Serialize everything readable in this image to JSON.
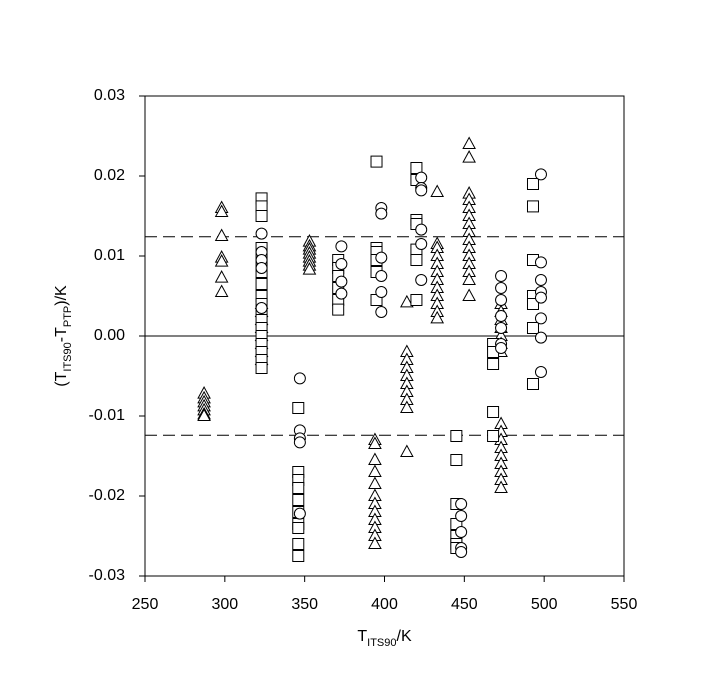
{
  "chart_data": {
    "type": "scatter",
    "xlabel": [
      {
        "text": "T"
      },
      {
        "text": "ITS90",
        "sub": true
      },
      {
        "text": "/K"
      }
    ],
    "ylabel": [
      {
        "text": "(T"
      },
      {
        "text": "ITS90",
        "sub": true
      },
      {
        "text": "-T"
      },
      {
        "text": "PTP",
        "sub": true
      },
      {
        "text": ")/K"
      }
    ],
    "xlim": [
      250,
      550
    ],
    "xticks": [
      250,
      300,
      350,
      400,
      450,
      500,
      550
    ],
    "ylim": [
      -0.03,
      0.03
    ],
    "yticks": [
      -0.03,
      -0.02,
      -0.01,
      {
        "value": 0,
        "label": "0.00"
      },
      0.01,
      0.02,
      0.03
    ],
    "reference_lines": [
      {
        "value": 0.0124,
        "style": "dashed"
      },
      {
        "value": 0,
        "style": "solid"
      },
      {
        "value": -0.0124,
        "style": "dashed"
      }
    ],
    "series": [
      {
        "marker": "triangle",
        "color": "#000000",
        "x": [
          287,
          287,
          287,
          287,
          287,
          287,
          287,
          298,
          298,
          298,
          298,
          298,
          298,
          298,
          323,
          323,
          323,
          323,
          323,
          323,
          323,
          323,
          353,
          353,
          353,
          353,
          353,
          353,
          353,
          353,
          394,
          394,
          394,
          394,
          394,
          394,
          394,
          394,
          394,
          394,
          394,
          394,
          414,
          414,
          414,
          414,
          414,
          414,
          414,
          414,
          414,
          414,
          433,
          433,
          433,
          433,
          433,
          433,
          433,
          433,
          433,
          433,
          433,
          433,
          453,
          453,
          453,
          453,
          453,
          453,
          453,
          453,
          453,
          453,
          453,
          453,
          453,
          453,
          453,
          473,
          473,
          473,
          473,
          473,
          473,
          473,
          473,
          473,
          473,
          473,
          473,
          473,
          473,
          473,
          473
        ],
        "values": [
          -0.0072,
          -0.0078,
          -0.0083,
          -0.0088,
          -0.0093,
          -0.0098,
          -0.01,
          0.016,
          0.0155,
          0.0125,
          0.0098,
          0.0093,
          0.0073,
          0.0055,
          0.004,
          0.003,
          0.002,
          0.001,
          0,
          -0.001,
          -0.002,
          -0.003,
          0.0118,
          0.0112,
          0.0108,
          0.0103,
          0.0098,
          0.0093,
          0.0088,
          0.0083,
          -0.013,
          -0.0135,
          -0.0155,
          -0.017,
          -0.0185,
          -0.02,
          -0.021,
          -0.022,
          -0.023,
          -0.024,
          -0.025,
          -0.026,
          0.0042,
          -0.002,
          -0.003,
          -0.004,
          -0.005,
          -0.006,
          -0.007,
          -0.008,
          -0.009,
          -0.0145,
          0.018,
          0.0115,
          0.011,
          0.01,
          0.009,
          0.008,
          0.007,
          0.006,
          0.005,
          0.004,
          0.003,
          0.0022,
          0.024,
          0.0223,
          0.0178,
          0.017,
          0.016,
          0.015,
          0.014,
          0.013,
          0.012,
          0.011,
          0.01,
          0.009,
          0.008,
          0.007,
          0.005,
          0.004,
          0.003,
          0.002,
          0.001,
          0,
          -0.001,
          -0.002,
          -0.011,
          -0.012,
          -0.013,
          -0.014,
          -0.015,
          -0.016,
          -0.017,
          -0.018,
          -0.019
        ]
      },
      {
        "marker": "square",
        "color": "#000000",
        "x": [
          323,
          323,
          323,
          323,
          323,
          323,
          323,
          323,
          323,
          323,
          323,
          323,
          323,
          323,
          323,
          323,
          323,
          346,
          346,
          346,
          346,
          346,
          346,
          346,
          346,
          346,
          346,
          371,
          371,
          371,
          371,
          371,
          371,
          395,
          395,
          395,
          395,
          395,
          395,
          420,
          420,
          420,
          420,
          420,
          420,
          420,
          445,
          445,
          445,
          445,
          445,
          445,
          445,
          468,
          468,
          468,
          468,
          468,
          493,
          493,
          493,
          493,
          493,
          493,
          493
        ],
        "values": [
          0.0172,
          0.0162,
          0.015,
          0.011,
          0.0095,
          0.008,
          0.0065,
          0.005,
          0.004,
          0.003,
          0.002,
          0.001,
          0,
          -0.001,
          -0.002,
          -0.003,
          -0.004,
          -0.009,
          -0.017,
          -0.018,
          -0.019,
          -0.0205,
          -0.022,
          -0.0235,
          -0.024,
          -0.026,
          -0.0275,
          0.0095,
          0.0085,
          0.0075,
          0.006,
          0.0045,
          0.0033,
          0.0218,
          0.011,
          0.0105,
          0.0095,
          0.008,
          0.0045,
          0.021,
          0.0195,
          0.0145,
          0.014,
          0.0108,
          0.0095,
          0.0045,
          -0.0125,
          -0.0155,
          -0.021,
          -0.0235,
          -0.025,
          -0.026,
          -0.0265,
          -0.001,
          -0.002,
          -0.0035,
          -0.0095,
          -0.0125,
          0.019,
          0.0162,
          0.0095,
          0.005,
          0.004,
          0.001,
          -0.006
        ]
      },
      {
        "marker": "circle",
        "color": "#000000",
        "x": [
          323,
          323,
          323,
          323,
          323,
          347,
          347,
          347,
          347,
          347,
          373,
          373,
          373,
          373,
          398,
          398,
          398,
          398,
          398,
          398,
          423,
          423,
          423,
          423,
          423,
          423,
          448,
          448,
          448,
          448,
          448,
          473,
          473,
          473,
          473,
          473,
          473,
          473,
          498,
          498,
          498,
          498,
          498,
          498,
          498,
          498
        ],
        "values": [
          0.0128,
          0.0105,
          0.0095,
          0.0085,
          0.0035,
          -0.0053,
          -0.0118,
          -0.0128,
          -0.0133,
          -0.0222,
          0.0112,
          0.009,
          0.0068,
          0.0053,
          0.016,
          0.0153,
          0.0098,
          0.0075,
          0.0055,
          0.003,
          0.0198,
          0.0185,
          0.0182,
          0.0133,
          0.0115,
          0.007,
          -0.021,
          -0.0225,
          -0.0245,
          -0.0265,
          -0.027,
          0.0075,
          0.006,
          0.0045,
          0.0025,
          0.001,
          -0.001,
          -0.0015,
          0.0202,
          0.0092,
          0.007,
          0.0055,
          0.0048,
          0.0022,
          -0.0002,
          -0.0045
        ]
      }
    ]
  }
}
